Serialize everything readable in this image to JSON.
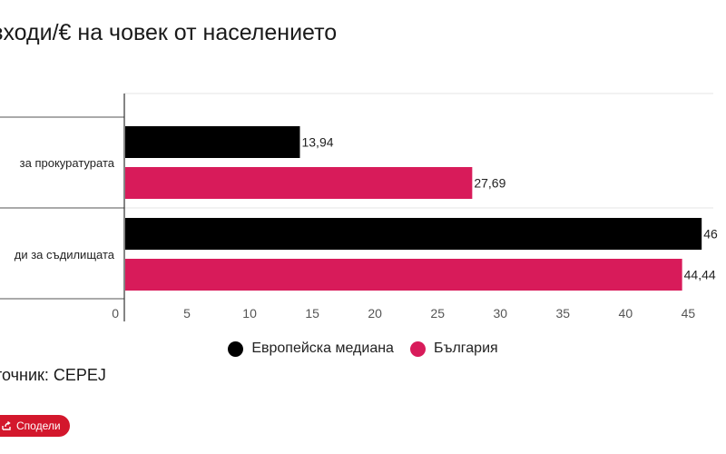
{
  "header": {
    "title": "зходи/€ на човек от населението"
  },
  "chart_data": {
    "type": "bar",
    "orientation": "horizontal",
    "categories": [
      "за прокуратурата",
      "ди за съдилищата"
    ],
    "series": [
      {
        "name": "Европейска медиана",
        "color": "#000000",
        "values": [
          13.94,
          46
        ],
        "labels": [
          "13,94",
          "46"
        ]
      },
      {
        "name": "България",
        "color": "#d81b5a",
        "values": [
          27.69,
          44.44
        ],
        "labels": [
          "27,69",
          "44,44"
        ]
      }
    ],
    "xticks": [
      "0",
      "5",
      "10",
      "15",
      "20",
      "25",
      "30",
      "35",
      "40",
      "45"
    ],
    "xlim": [
      0,
      47
    ],
    "grid": true,
    "legend": "bottom"
  },
  "source": {
    "text": "точник: CEPEJ"
  },
  "share": {
    "label": "Сподели",
    "icon": "share-icon"
  }
}
